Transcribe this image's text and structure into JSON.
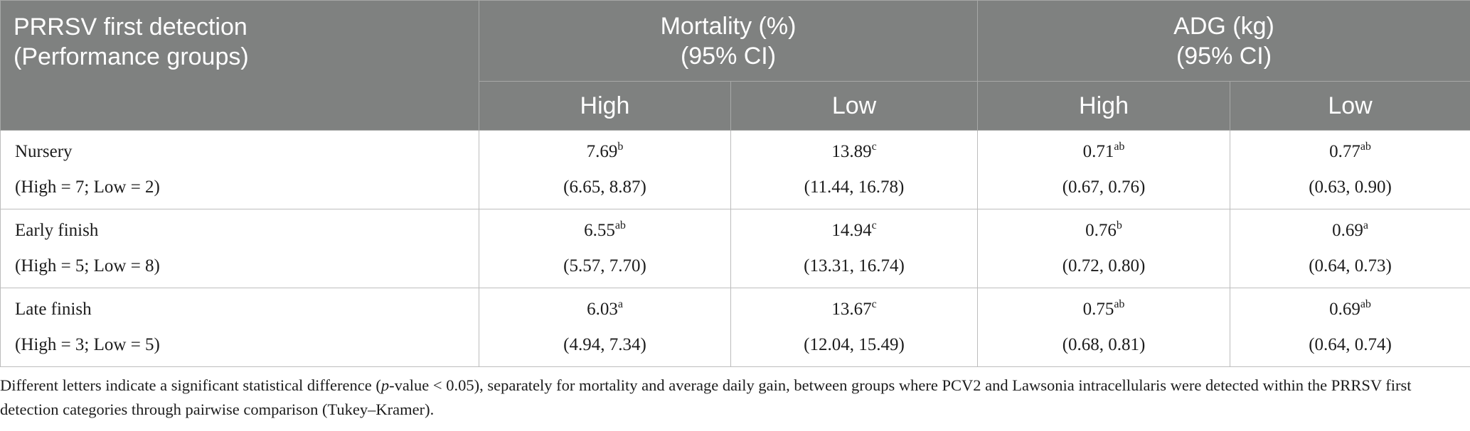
{
  "table": {
    "header": {
      "first_col_line1": "PRRSV first detection",
      "first_col_line2": "(Performance groups)",
      "mortality_line1": "Mortality (%)",
      "mortality_line2": "(95% CI)",
      "adg_line1": "ADG (kg)",
      "adg_line2": "(95% CI)",
      "sub_high": "High",
      "sub_low": "Low"
    },
    "rows": [
      {
        "name": "Nursery",
        "counts": "(High = 7; Low = 2)",
        "cells": [
          {
            "value": "7.69",
            "sup": "b",
            "ci": "(6.65, 8.87)"
          },
          {
            "value": "13.89",
            "sup": "c",
            "ci": "(11.44, 16.78)"
          },
          {
            "value": "0.71",
            "sup": "ab",
            "ci": "(0.67, 0.76)"
          },
          {
            "value": "0.77",
            "sup": "ab",
            "ci": "(0.63, 0.90)"
          }
        ]
      },
      {
        "name": "Early finish",
        "counts": "(High = 5; Low = 8)",
        "cells": [
          {
            "value": "6.55",
            "sup": "ab",
            "ci": "(5.57, 7.70)"
          },
          {
            "value": "14.94",
            "sup": "c",
            "ci": "(13.31, 16.74)"
          },
          {
            "value": "0.76",
            "sup": "b",
            "ci": "(0.72, 0.80)"
          },
          {
            "value": "0.69",
            "sup": "a",
            "ci": "(0.64, 0.73)"
          }
        ]
      },
      {
        "name": "Late finish",
        "counts": "(High = 3; Low = 5)",
        "cells": [
          {
            "value": "6.03",
            "sup": "a",
            "ci": "(4.94, 7.34)"
          },
          {
            "value": "13.67",
            "sup": "c",
            "ci": "(12.04, 15.49)"
          },
          {
            "value": "0.75",
            "sup": "ab",
            "ci": "(0.68, 0.81)"
          },
          {
            "value": "0.69",
            "sup": "ab",
            "ci": "(0.64, 0.74)"
          }
        ]
      }
    ]
  },
  "footnote": {
    "part1": "Different letters indicate a significant statistical difference (",
    "p_italic": "p",
    "part2": "-value < 0.05), separately for mortality and average daily gain, between groups where PCV2 and Lawsonia intracellularis were detected within the PRRSV first detection categories through pairwise comparison (Tukey–Kramer)."
  }
}
